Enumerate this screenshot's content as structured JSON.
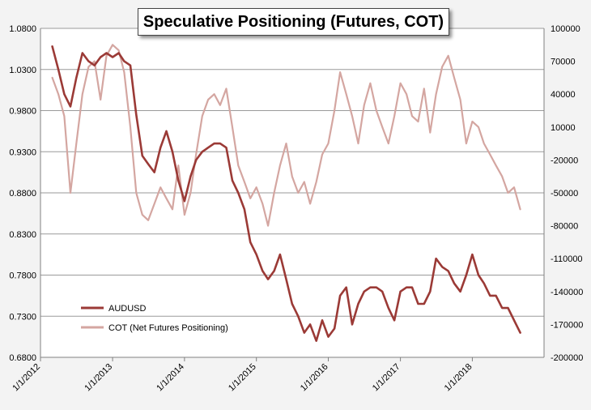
{
  "chart_data": {
    "type": "line",
    "title": "Speculative Positioning (Futures, COT)",
    "x_tick_labels": [
      "1/1/2012",
      "1/1/2013",
      "1/1/2014",
      "1/1/2015",
      "1/1/2016",
      "1/1/2017",
      "1/1/2018"
    ],
    "xlim": [
      "2012-01-01",
      "2018-12-31"
    ],
    "y_left": {
      "ylim": [
        0.68,
        1.08
      ],
      "ticks": [
        "0.6800",
        "0.7300",
        "0.7800",
        "0.8300",
        "0.8800",
        "0.9300",
        "0.9800",
        "1.0300",
        "1.0800"
      ]
    },
    "y_right": {
      "ylim": [
        -200000,
        100000
      ],
      "ticks": [
        "-200000",
        "-170000",
        "-140000",
        "-110000",
        "-80000",
        "-50000",
        "-20000",
        "10000",
        "40000",
        "70000",
        "100000"
      ]
    },
    "grid": "horizontal",
    "legend_position": "bottom-left",
    "series": [
      {
        "name": "AUDUSD",
        "axis": "left",
        "color": "#9b3a36",
        "x": [
          "2012-03-01",
          "2012-04-01",
          "2012-05-01",
          "2012-06-01",
          "2012-07-01",
          "2012-08-01",
          "2012-09-01",
          "2012-10-01",
          "2012-11-01",
          "2012-12-01",
          "2013-01-01",
          "2013-02-01",
          "2013-03-01",
          "2013-04-01",
          "2013-05-01",
          "2013-06-01",
          "2013-07-01",
          "2013-08-01",
          "2013-09-01",
          "2013-10-01",
          "2013-11-01",
          "2013-12-01",
          "2014-01-01",
          "2014-02-01",
          "2014-03-01",
          "2014-04-01",
          "2014-05-01",
          "2014-06-01",
          "2014-07-01",
          "2014-08-01",
          "2014-09-01",
          "2014-10-01",
          "2014-11-01",
          "2014-12-01",
          "2015-01-01",
          "2015-02-01",
          "2015-03-01",
          "2015-04-01",
          "2015-05-01",
          "2015-06-01",
          "2015-07-01",
          "2015-08-01",
          "2015-09-01",
          "2015-10-01",
          "2015-11-01",
          "2015-12-01",
          "2016-01-01",
          "2016-02-01",
          "2016-03-01",
          "2016-04-01",
          "2016-05-01",
          "2016-06-01",
          "2016-07-01",
          "2016-08-01",
          "2016-09-01",
          "2016-10-01",
          "2016-11-01",
          "2016-12-01",
          "2017-01-01",
          "2017-02-01",
          "2017-03-01",
          "2017-04-01",
          "2017-05-01",
          "2017-06-01",
          "2017-07-01",
          "2017-08-01",
          "2017-09-01",
          "2017-10-01",
          "2017-11-01",
          "2017-12-01",
          "2018-01-01",
          "2018-02-01",
          "2018-03-01",
          "2018-04-01",
          "2018-05-01",
          "2018-06-01",
          "2018-07-01",
          "2018-08-01",
          "2018-09-01"
        ],
        "values": [
          1.058,
          1.03,
          1.0,
          0.985,
          1.02,
          1.05,
          1.04,
          1.035,
          1.045,
          1.05,
          1.045,
          1.05,
          1.04,
          1.035,
          0.975,
          0.925,
          0.915,
          0.905,
          0.935,
          0.955,
          0.93,
          0.895,
          0.87,
          0.9,
          0.92,
          0.93,
          0.935,
          0.94,
          0.94,
          0.935,
          0.895,
          0.88,
          0.86,
          0.82,
          0.805,
          0.785,
          0.775,
          0.785,
          0.805,
          0.775,
          0.745,
          0.73,
          0.71,
          0.72,
          0.7,
          0.725,
          0.705,
          0.715,
          0.755,
          0.765,
          0.72,
          0.745,
          0.76,
          0.765,
          0.765,
          0.76,
          0.74,
          0.725,
          0.76,
          0.765,
          0.765,
          0.745,
          0.745,
          0.76,
          0.8,
          0.79,
          0.785,
          0.77,
          0.76,
          0.78,
          0.805,
          0.78,
          0.77,
          0.755,
          0.755,
          0.74,
          0.74,
          0.725,
          0.71
        ]
      },
      {
        "name": "COT (Net Futures Positioning)",
        "axis": "right",
        "color": "#d4a6a1",
        "x": [
          "2012-03-01",
          "2012-04-01",
          "2012-05-01",
          "2012-06-01",
          "2012-07-01",
          "2012-08-01",
          "2012-09-01",
          "2012-10-01",
          "2012-11-01",
          "2012-12-01",
          "2013-01-01",
          "2013-02-01",
          "2013-03-01",
          "2013-04-01",
          "2013-05-01",
          "2013-06-01",
          "2013-07-01",
          "2013-08-01",
          "2013-09-01",
          "2013-10-01",
          "2013-11-01",
          "2013-12-01",
          "2014-01-01",
          "2014-02-01",
          "2014-03-01",
          "2014-04-01",
          "2014-05-01",
          "2014-06-01",
          "2014-07-01",
          "2014-08-01",
          "2014-09-01",
          "2014-10-01",
          "2014-11-01",
          "2014-12-01",
          "2015-01-01",
          "2015-02-01",
          "2015-03-01",
          "2015-04-01",
          "2015-05-01",
          "2015-06-01",
          "2015-07-01",
          "2015-08-01",
          "2015-09-01",
          "2015-10-01",
          "2015-11-01",
          "2015-12-01",
          "2016-01-01",
          "2016-02-01",
          "2016-03-01",
          "2016-04-01",
          "2016-05-01",
          "2016-06-01",
          "2016-07-01",
          "2016-08-01",
          "2016-09-01",
          "2016-10-01",
          "2016-11-01",
          "2016-12-01",
          "2017-01-01",
          "2017-02-01",
          "2017-03-01",
          "2017-04-01",
          "2017-05-01",
          "2017-06-01",
          "2017-07-01",
          "2017-08-01",
          "2017-09-01",
          "2017-10-01",
          "2017-11-01",
          "2017-12-01",
          "2018-01-01",
          "2018-02-01",
          "2018-03-01",
          "2018-04-01",
          "2018-05-01",
          "2018-06-01",
          "2018-07-01",
          "2018-08-01",
          "2018-09-01"
        ],
        "values": [
          55000,
          40000,
          20000,
          -50000,
          -5000,
          40000,
          65000,
          70000,
          35000,
          75000,
          85000,
          80000,
          60000,
          10000,
          -50000,
          -70000,
          -75000,
          -60000,
          -45000,
          -55000,
          -65000,
          -25000,
          -70000,
          -50000,
          -15000,
          20000,
          35000,
          40000,
          30000,
          45000,
          10000,
          -25000,
          -40000,
          -55000,
          -45000,
          -60000,
          -80000,
          -50000,
          -25000,
          -5000,
          -35000,
          -50000,
          -40000,
          -60000,
          -40000,
          -15000,
          -5000,
          25000,
          60000,
          40000,
          20000,
          -5000,
          30000,
          50000,
          25000,
          10000,
          -5000,
          20000,
          50000,
          40000,
          20000,
          15000,
          45000,
          5000,
          40000,
          65000,
          75000,
          55000,
          35000,
          -5000,
          15000,
          10000,
          -5000,
          -15000,
          -25000,
          -35000,
          -50000,
          -45000,
          -65000
        ]
      }
    ]
  }
}
